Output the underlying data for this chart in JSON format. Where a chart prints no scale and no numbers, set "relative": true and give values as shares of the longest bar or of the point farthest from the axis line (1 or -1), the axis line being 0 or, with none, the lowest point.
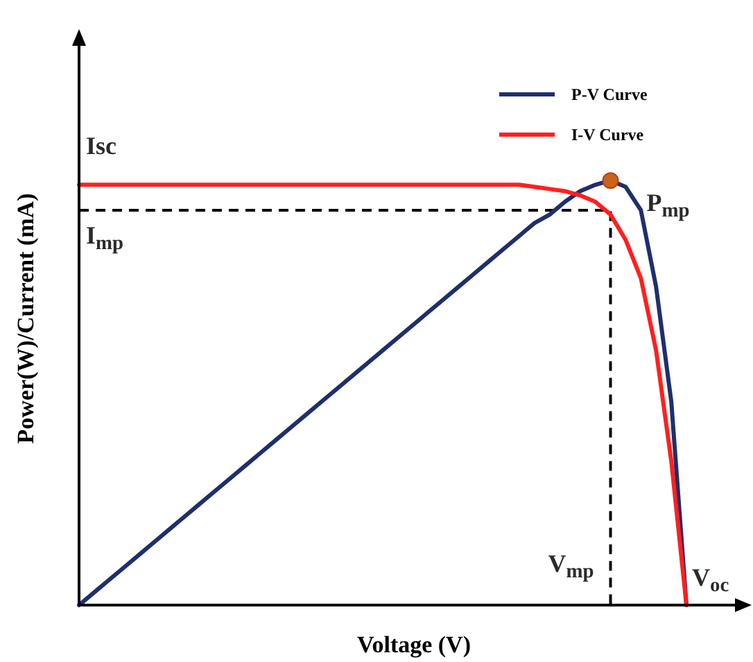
{
  "chart_data": {
    "type": "line",
    "relative": true,
    "xlabel": "Voltage (V)",
    "ylabel": "Power(W)/Current (mA)",
    "legend": "top right",
    "categories": [
      null,
      null,
      null,
      null,
      null,
      null,
      null,
      null,
      null,
      null,
      null,
      null,
      null,
      null,
      null,
      null,
      null,
      null,
      null,
      null,
      null,
      null,
      null,
      null,
      null,
      null,
      null,
      null,
      null,
      null,
      null,
      null,
      null,
      null,
      null,
      null,
      null,
      null,
      null,
      null,
      null
    ],
    "series": [
      {
        "name": "P-V Curve",
        "color": "#1f2f6e",
        "values": [
          0,
          0.03,
          0.06,
          0.09,
          0.12,
          0.15,
          0.18,
          0.21,
          0.24,
          0.27,
          0.3,
          0.33,
          0.36,
          0.39,
          0.42,
          0.45,
          0.48,
          0.51,
          0.54,
          0.57,
          0.6,
          0.63,
          0.66,
          0.69,
          0.72,
          0.75,
          0.78,
          0.81,
          0.84,
          0.87,
          0.9,
          0.92,
          0.95,
          0.975,
          0.99,
          1,
          0.985,
          0.93,
          0.75,
          0.48,
          0
        ]
      },
      {
        "name": "I-V Curve",
        "color": "#ff2020",
        "values": [
          0.99,
          0.99,
          0.99,
          0.99,
          0.99,
          0.99,
          0.99,
          0.99,
          0.99,
          0.99,
          0.99,
          0.99,
          0.99,
          0.99,
          0.99,
          0.99,
          0.99,
          0.99,
          0.99,
          0.99,
          0.99,
          0.99,
          0.99,
          0.99,
          0.99,
          0.99,
          0.99,
          0.99,
          0.99,
          0.99,
          0.985,
          0.98,
          0.975,
          0.965,
          0.95,
          0.92,
          0.86,
          0.77,
          0.6,
          0.34,
          0
        ]
      }
    ],
    "ref_lines": [
      {
        "axis": "y",
        "value": 0.93,
        "label": "I$_{mp}$",
        "color": "#000000",
        "line_style": "dashed"
      }
    ],
    "annotations": [
      "Isc",
      "P$_{mp}$",
      "V$_{mp}$",
      "V$_{oc}$"
    ]
  }
}
